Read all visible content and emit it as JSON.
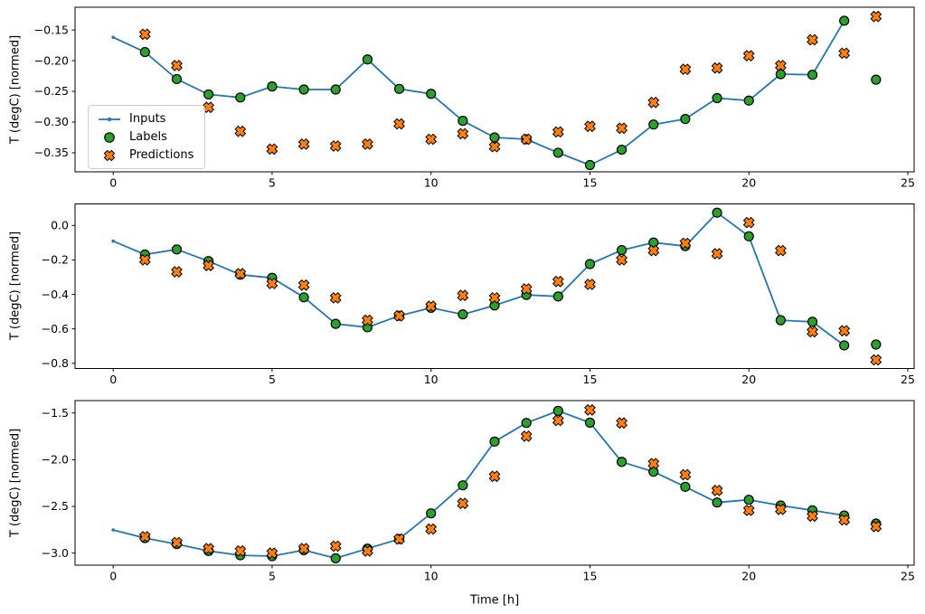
{
  "figure": {
    "background": "#ffffff"
  },
  "colors": {
    "inputs_line": "#1f77b4",
    "labels_fill": "#2ca02c",
    "predictions_fill": "#ff7f0e",
    "marker_edge": "#000000",
    "axis": "#000000",
    "legend_border": "#cccccc"
  },
  "axes": {
    "ylabel": "T (degC) [normed]",
    "xlabel": "Time [h]"
  },
  "legend": {
    "items": [
      {
        "name": "inputs",
        "label": "Inputs"
      },
      {
        "name": "labels",
        "label": "Labels"
      },
      {
        "name": "predictions",
        "label": "Predictions"
      }
    ]
  },
  "chart_data": [
    {
      "type": "line+scatter",
      "xlim": [
        -1.2,
        25.2
      ],
      "ylim": [
        -0.381,
        -0.113
      ],
      "xticks": {
        "values": [
          0,
          5,
          10,
          15,
          20,
          25
        ],
        "labels": [
          "0",
          "5",
          "10",
          "15",
          "20",
          "25"
        ]
      },
      "yticks": {
        "values": [
          -0.15,
          -0.2,
          -0.25,
          -0.3,
          -0.35
        ],
        "labels": [
          "−0.15",
          "−0.20",
          "−0.25",
          "−0.30",
          "−0.35"
        ]
      },
      "series": [
        {
          "name": "Inputs",
          "type": "line",
          "marker": "dot",
          "x": [
            0,
            1,
            2,
            3,
            4,
            5,
            6,
            7,
            8,
            9,
            10,
            11,
            12,
            13,
            14,
            15,
            16,
            17,
            18,
            19,
            20,
            21,
            22,
            23
          ],
          "y": [
            -0.162,
            -0.186,
            -0.23,
            -0.255,
            -0.26,
            -0.242,
            -0.247,
            -0.247,
            -0.198,
            -0.246,
            -0.254,
            -0.298,
            -0.325,
            -0.328,
            -0.35,
            -0.37,
            -0.345,
            -0.304,
            -0.295,
            -0.261,
            -0.265,
            -0.222,
            -0.223,
            -0.135
          ]
        },
        {
          "name": "Labels",
          "type": "scatter",
          "marker": "circle",
          "x": [
            1,
            2,
            3,
            4,
            5,
            6,
            7,
            8,
            9,
            10,
            11,
            12,
            13,
            14,
            15,
            16,
            17,
            18,
            19,
            20,
            21,
            22,
            23,
            24
          ],
          "y": [
            -0.186,
            -0.23,
            -0.255,
            -0.26,
            -0.242,
            -0.247,
            -0.247,
            -0.198,
            -0.246,
            -0.254,
            -0.298,
            -0.325,
            -0.328,
            -0.35,
            -0.37,
            -0.345,
            -0.304,
            -0.295,
            -0.261,
            -0.265,
            -0.222,
            -0.223,
            -0.135,
            -0.231
          ]
        },
        {
          "name": "Predictions",
          "type": "scatter",
          "marker": "X",
          "x": [
            1,
            2,
            3,
            4,
            5,
            6,
            7,
            8,
            9,
            10,
            11,
            12,
            13,
            14,
            15,
            16,
            17,
            18,
            19,
            20,
            21,
            22,
            23,
            24
          ],
          "y": [
            -0.157,
            -0.208,
            -0.276,
            -0.315,
            -0.344,
            -0.336,
            -0.339,
            -0.336,
            -0.303,
            -0.328,
            -0.319,
            -0.34,
            -0.328,
            -0.316,
            -0.307,
            -0.31,
            -0.268,
            -0.214,
            -0.212,
            -0.192,
            -0.208,
            -0.166,
            -0.188,
            -0.128
          ]
        }
      ]
    },
    {
      "type": "line+scatter",
      "xlim": [
        -1.2,
        25.2
      ],
      "ylim": [
        -0.83,
        0.125
      ],
      "xticks": {
        "values": [
          0,
          5,
          10,
          15,
          20,
          25
        ],
        "labels": [
          "0",
          "5",
          "10",
          "15",
          "20",
          "25"
        ]
      },
      "yticks": {
        "values": [
          0.0,
          -0.2,
          -0.4,
          -0.6,
          -0.8
        ],
        "labels": [
          "0.0",
          "−0.2",
          "−0.4",
          "−0.6",
          "−0.8"
        ]
      },
      "series": [
        {
          "name": "Inputs",
          "type": "line",
          "marker": "dot",
          "x": [
            0,
            1,
            2,
            3,
            4,
            5,
            6,
            7,
            8,
            9,
            10,
            11,
            12,
            13,
            14,
            15,
            16,
            17,
            18,
            19,
            20,
            21,
            22,
            23
          ],
          "y": [
            -0.091,
            -0.169,
            -0.139,
            -0.207,
            -0.286,
            -0.304,
            -0.417,
            -0.571,
            -0.591,
            -0.524,
            -0.478,
            -0.516,
            -0.464,
            -0.403,
            -0.412,
            -0.224,
            -0.143,
            -0.099,
            -0.12,
            0.074,
            -0.063,
            -0.55,
            -0.559,
            -0.696
          ]
        },
        {
          "name": "Labels",
          "type": "scatter",
          "marker": "circle",
          "x": [
            1,
            2,
            3,
            4,
            5,
            6,
            7,
            8,
            9,
            10,
            11,
            12,
            13,
            14,
            15,
            16,
            17,
            18,
            19,
            20,
            21,
            22,
            23,
            24
          ],
          "y": [
            -0.169,
            -0.139,
            -0.207,
            -0.286,
            -0.304,
            -0.417,
            -0.571,
            -0.591,
            -0.524,
            -0.478,
            -0.516,
            -0.464,
            -0.403,
            -0.412,
            -0.224,
            -0.143,
            -0.099,
            -0.12,
            0.074,
            -0.063,
            -0.55,
            -0.559,
            -0.696,
            -0.691
          ]
        },
        {
          "name": "Predictions",
          "type": "scatter",
          "marker": "X",
          "x": [
            1,
            2,
            3,
            4,
            5,
            6,
            7,
            8,
            9,
            10,
            11,
            12,
            13,
            14,
            15,
            16,
            17,
            18,
            19,
            20,
            21,
            22,
            23,
            24
          ],
          "y": [
            -0.2,
            -0.269,
            -0.233,
            -0.28,
            -0.337,
            -0.346,
            -0.42,
            -0.55,
            -0.524,
            -0.469,
            -0.406,
            -0.42,
            -0.368,
            -0.325,
            -0.342,
            -0.2,
            -0.146,
            -0.104,
            -0.164,
            0.017,
            -0.146,
            -0.617,
            -0.611,
            -0.78
          ]
        }
      ]
    },
    {
      "type": "line+scatter",
      "xlim": [
        -1.2,
        25.2
      ],
      "ylim": [
        -3.129,
        -1.367
      ],
      "xticks": {
        "values": [
          0,
          5,
          10,
          15,
          20,
          25
        ],
        "labels": [
          "0",
          "5",
          "10",
          "15",
          "20",
          "25"
        ]
      },
      "yticks": {
        "values": [
          -1.5,
          -2.0,
          -2.5,
          -3.0
        ],
        "labels": [
          "−1.5",
          "−2.0",
          "−2.5",
          "−3.0"
        ]
      },
      "series": [
        {
          "name": "Inputs",
          "type": "line",
          "marker": "dot",
          "x": [
            0,
            1,
            2,
            3,
            4,
            5,
            6,
            7,
            8,
            9,
            10,
            11,
            12,
            13,
            14,
            15,
            16,
            17,
            18,
            19,
            20,
            21,
            22,
            23
          ],
          "y": [
            -2.752,
            -2.839,
            -2.903,
            -2.977,
            -3.023,
            -3.032,
            -2.968,
            -3.055,
            -2.952,
            -2.849,
            -2.574,
            -2.274,
            -1.806,
            -1.606,
            -1.477,
            -1.603,
            -2.023,
            -2.129,
            -2.29,
            -2.458,
            -2.429,
            -2.49,
            -2.542,
            -2.597
          ]
        },
        {
          "name": "Labels",
          "type": "scatter",
          "marker": "circle",
          "x": [
            1,
            2,
            3,
            4,
            5,
            6,
            7,
            8,
            9,
            10,
            11,
            12,
            13,
            14,
            15,
            16,
            17,
            18,
            19,
            20,
            21,
            22,
            23,
            24
          ],
          "y": [
            -2.839,
            -2.903,
            -2.977,
            -3.023,
            -3.032,
            -2.968,
            -3.055,
            -2.952,
            -2.849,
            -2.574,
            -2.274,
            -1.806,
            -1.606,
            -1.477,
            -1.603,
            -2.023,
            -2.129,
            -2.29,
            -2.458,
            -2.429,
            -2.49,
            -2.542,
            -2.597,
            -2.684
          ]
        },
        {
          "name": "Predictions",
          "type": "scatter",
          "marker": "X",
          "x": [
            1,
            2,
            3,
            4,
            5,
            6,
            7,
            8,
            9,
            10,
            11,
            12,
            13,
            14,
            15,
            16,
            17,
            18,
            19,
            20,
            21,
            22,
            23,
            24
          ],
          "y": [
            -2.824,
            -2.887,
            -2.952,
            -2.977,
            -3.0,
            -2.952,
            -2.926,
            -2.977,
            -2.849,
            -2.742,
            -2.468,
            -2.178,
            -1.748,
            -1.58,
            -1.467,
            -1.606,
            -2.042,
            -2.161,
            -2.329,
            -2.542,
            -2.532,
            -2.604,
            -2.645,
            -2.716
          ]
        }
      ]
    }
  ]
}
